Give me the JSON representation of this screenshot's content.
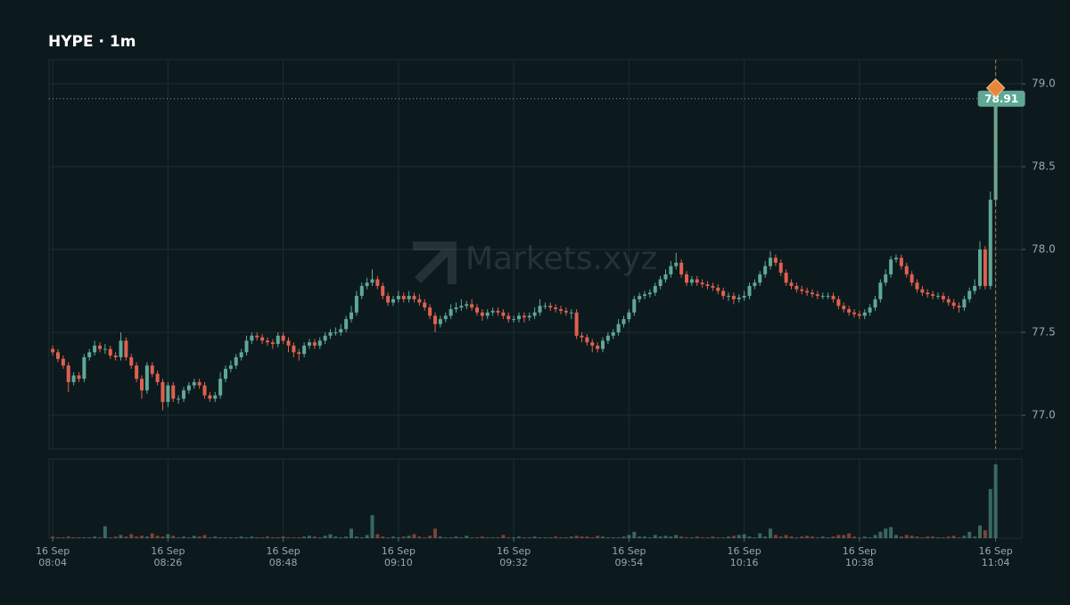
{
  "chart_data": {
    "type": "candlestick",
    "title": "HYPE · 1m",
    "watermark": "Markets.xyz",
    "up_color": "#5fa896",
    "down_color": "#e0604f",
    "last_color": "#e8873a",
    "grid": true,
    "xlim": [
      -0.7,
      185
    ],
    "ylim": [
      76.796,
      79.145
    ],
    "vlim": [
      0,
      100
    ],
    "xticks": [
      {
        "value": 0,
        "label": [
          "16 Sep",
          "08:04"
        ]
      },
      {
        "value": 22,
        "label": [
          "16 Sep",
          "08:26"
        ]
      },
      {
        "value": 44,
        "label": [
          "16 Sep",
          "08:48"
        ]
      },
      {
        "value": 66,
        "label": [
          "16 Sep",
          "09:10"
        ]
      },
      {
        "value": 88,
        "label": [
          "16 Sep",
          "09:32"
        ]
      },
      {
        "value": 110,
        "label": [
          "16 Sep",
          "09:54"
        ]
      },
      {
        "value": 132,
        "label": [
          "16 Sep",
          "10:16"
        ]
      },
      {
        "value": 154,
        "label": [
          "16 Sep",
          "10:38"
        ]
      },
      {
        "value": 180,
        "label": [
          "16 Sep",
          "11:04"
        ]
      }
    ],
    "yticks": [
      {
        "value": 77,
        "label": "77.0"
      },
      {
        "value": 77.5,
        "label": "77.5"
      },
      {
        "value": 78,
        "label": "78.0"
      },
      {
        "value": 78.5,
        "label": "78.5"
      },
      {
        "value": 79,
        "label": "79.0"
      }
    ],
    "last": 78.91,
    "open": [
      77.4,
      77.38,
      77.34,
      77.3,
      77.2,
      77.24,
      77.22,
      77.35,
      77.38,
      77.42,
      77.4,
      77.4,
      77.36,
      77.35,
      77.45,
      77.35,
      77.3,
      77.22,
      77.15,
      77.3,
      77.25,
      77.2,
      77.08,
      77.18,
      77.1,
      77.1,
      77.15,
      77.18,
      77.2,
      77.18,
      77.12,
      77.1,
      77.12,
      77.22,
      77.28,
      77.3,
      77.35,
      77.38,
      77.45,
      77.48,
      77.47,
      77.45,
      77.44,
      77.43,
      77.48,
      77.45,
      77.42,
      77.38,
      77.37,
      77.42,
      77.44,
      77.42,
      77.45,
      77.48,
      77.5,
      77.5,
      77.52,
      77.58,
      77.62,
      77.72,
      77.78,
      77.8,
      77.82,
      77.78,
      77.72,
      77.68,
      77.7,
      77.72,
      77.7,
      77.72,
      77.7,
      77.68,
      77.65,
      77.6,
      77.55,
      77.58,
      77.6,
      77.64,
      77.65,
      77.66,
      77.67,
      77.65,
      77.62,
      77.6,
      77.62,
      77.63,
      77.62,
      77.6,
      77.58,
      77.58,
      77.6,
      77.59,
      77.6,
      77.62,
      77.66,
      77.66,
      77.65,
      77.64,
      77.63,
      77.62,
      77.62,
      77.48,
      77.47,
      77.44,
      77.42,
      77.4,
      77.45,
      77.48,
      77.5,
      77.55,
      77.58,
      77.62,
      77.7,
      77.72,
      77.73,
      77.74,
      77.78,
      77.82,
      77.85,
      77.9,
      77.92,
      77.85,
      77.8,
      77.82,
      77.8,
      77.79,
      77.78,
      77.77,
      77.75,
      77.72,
      77.72,
      77.7,
      77.71,
      77.72,
      77.78,
      77.8,
      77.85,
      77.9,
      77.95,
      77.92,
      77.86,
      77.8,
      77.78,
      77.76,
      77.75,
      77.74,
      77.73,
      77.72,
      77.72,
      77.72,
      77.7,
      77.66,
      77.64,
      77.62,
      77.61,
      77.6,
      77.62,
      77.65,
      77.7,
      77.8,
      77.85,
      77.94,
      77.95,
      77.9,
      77.85,
      77.8,
      77.76,
      77.74,
      77.73,
      77.72,
      77.72,
      77.7,
      77.68,
      77.66,
      77.65,
      77.7,
      77.75,
      77.78,
      78.0,
      77.78,
      78.3
    ],
    "high": [
      77.42,
      77.4,
      77.36,
      77.32,
      77.26,
      77.26,
      77.37,
      77.4,
      77.45,
      77.44,
      77.43,
      77.42,
      77.38,
      77.5,
      77.47,
      77.37,
      77.32,
      77.24,
      77.32,
      77.32,
      77.27,
      77.22,
      77.2,
      77.2,
      77.12,
      77.17,
      77.2,
      77.22,
      77.22,
      77.2,
      77.14,
      77.14,
      77.26,
      77.3,
      77.33,
      77.37,
      77.4,
      77.48,
      77.5,
      77.5,
      77.49,
      77.47,
      77.46,
      77.5,
      77.5,
      77.47,
      77.44,
      77.4,
      77.44,
      77.46,
      77.46,
      77.47,
      77.5,
      77.52,
      77.53,
      77.55,
      77.6,
      77.66,
      77.75,
      77.8,
      77.83,
      77.88,
      77.84,
      77.8,
      77.74,
      77.72,
      77.75,
      77.74,
      77.75,
      77.74,
      77.73,
      77.7,
      77.67,
      77.62,
      77.6,
      77.62,
      77.67,
      77.68,
      77.7,
      77.69,
      77.7,
      77.67,
      77.64,
      77.64,
      77.65,
      77.65,
      77.64,
      77.62,
      77.6,
      77.62,
      77.62,
      77.62,
      77.65,
      77.7,
      77.68,
      77.68,
      77.67,
      77.66,
      77.65,
      77.64,
      77.64,
      77.5,
      77.49,
      77.46,
      77.44,
      77.47,
      77.5,
      77.52,
      77.58,
      77.6,
      77.64,
      77.72,
      77.74,
      77.75,
      77.76,
      77.8,
      77.84,
      77.88,
      77.93,
      77.98,
      77.94,
      77.87,
      77.84,
      77.84,
      77.82,
      77.81,
      77.8,
      77.79,
      77.77,
      77.74,
      77.74,
      77.73,
      77.75,
      77.8,
      77.82,
      77.87,
      77.93,
      77.99,
      77.97,
      77.94,
      77.88,
      77.82,
      77.8,
      77.78,
      77.77,
      77.76,
      77.75,
      77.74,
      77.74,
      77.74,
      77.72,
      77.68,
      77.66,
      77.64,
      77.63,
      77.64,
      77.67,
      77.72,
      77.82,
      77.88,
      77.96,
      77.97,
      77.97,
      77.92,
      77.87,
      77.82,
      77.78,
      77.76,
      77.75,
      77.74,
      77.74,
      77.72,
      77.7,
      77.68,
      77.72,
      77.77,
      77.82,
      78.05,
      78.02,
      78.35,
      78.96
    ],
    "low": [
      77.36,
      77.32,
      77.28,
      77.14,
      77.18,
      77.2,
      77.2,
      77.33,
      77.36,
      77.38,
      77.37,
      77.34,
      77.33,
      77.33,
      77.33,
      77.28,
      77.2,
      77.1,
      77.13,
      77.23,
      77.18,
      77.03,
      77.05,
      77.08,
      77.07,
      77.08,
      77.13,
      77.16,
      77.16,
      77.1,
      77.08,
      77.08,
      77.1,
      77.2,
      77.26,
      77.28,
      77.33,
      77.36,
      77.43,
      77.45,
      77.43,
      77.42,
      77.4,
      77.41,
      77.43,
      77.38,
      77.35,
      77.33,
      77.35,
      77.4,
      77.4,
      77.4,
      77.43,
      77.46,
      77.48,
      77.48,
      77.5,
      77.56,
      77.6,
      77.7,
      77.76,
      77.78,
      77.76,
      77.7,
      77.66,
      77.66,
      77.68,
      77.68,
      77.68,
      77.68,
      77.66,
      77.63,
      77.58,
      77.5,
      77.53,
      77.56,
      77.58,
      77.62,
      77.63,
      77.64,
      77.63,
      77.6,
      77.57,
      77.58,
      77.6,
      77.6,
      77.58,
      77.56,
      77.56,
      77.56,
      77.56,
      77.57,
      77.58,
      77.6,
      77.64,
      77.63,
      77.62,
      77.61,
      77.6,
      77.58,
      77.46,
      77.44,
      77.42,
      77.38,
      77.38,
      77.38,
      77.43,
      77.46,
      77.48,
      77.53,
      77.56,
      77.6,
      77.68,
      77.7,
      77.71,
      77.72,
      77.76,
      77.8,
      77.83,
      77.88,
      77.83,
      77.78,
      77.78,
      77.78,
      77.77,
      77.76,
      77.75,
      77.73,
      77.7,
      77.69,
      77.67,
      77.68,
      77.69,
      77.7,
      77.76,
      77.78,
      77.83,
      77.88,
      77.9,
      77.84,
      77.78,
      77.76,
      77.74,
      77.73,
      77.72,
      77.71,
      77.7,
      77.7,
      77.7,
      77.68,
      77.64,
      77.62,
      77.6,
      77.59,
      77.58,
      77.58,
      77.6,
      77.63,
      77.68,
      77.78,
      77.83,
      77.92,
      77.88,
      77.83,
      77.78,
      77.74,
      77.72,
      77.71,
      77.7,
      77.7,
      77.68,
      77.66,
      77.64,
      77.62,
      77.63,
      77.68,
      77.73,
      77.76,
      77.76,
      77.76,
      78.26
    ],
    "close": [
      77.38,
      77.34,
      77.3,
      77.2,
      77.24,
      77.22,
      77.35,
      77.38,
      77.42,
      77.4,
      77.4,
      77.36,
      77.35,
      77.45,
      77.35,
      77.3,
      77.22,
      77.15,
      77.3,
      77.25,
      77.2,
      77.08,
      77.18,
      77.1,
      77.1,
      77.15,
      77.18,
      77.2,
      77.18,
      77.12,
      77.1,
      77.12,
      77.22,
      77.28,
      77.3,
      77.35,
      77.38,
      77.45,
      77.48,
      77.47,
      77.45,
      77.44,
      77.43,
      77.48,
      77.45,
      77.42,
      77.38,
      77.37,
      77.42,
      77.44,
      77.42,
      77.45,
      77.48,
      77.5,
      77.5,
      77.52,
      77.58,
      77.62,
      77.72,
      77.78,
      77.8,
      77.82,
      77.78,
      77.72,
      77.68,
      77.7,
      77.72,
      77.7,
      77.72,
      77.7,
      77.68,
      77.65,
      77.6,
      77.55,
      77.58,
      77.6,
      77.64,
      77.65,
      77.66,
      77.67,
      77.65,
      77.62,
      77.6,
      77.62,
      77.63,
      77.62,
      77.6,
      77.58,
      77.58,
      77.6,
      77.59,
      77.6,
      77.62,
      77.66,
      77.66,
      77.65,
      77.64,
      77.63,
      77.62,
      77.62,
      77.48,
      77.47,
      77.44,
      77.42,
      77.4,
      77.45,
      77.48,
      77.5,
      77.55,
      77.58,
      77.62,
      77.7,
      77.72,
      77.73,
      77.74,
      77.78,
      77.82,
      77.85,
      77.9,
      77.92,
      77.85,
      77.8,
      77.82,
      77.8,
      77.79,
      77.78,
      77.77,
      77.75,
      77.72,
      77.72,
      77.7,
      77.71,
      77.72,
      77.78,
      77.8,
      77.85,
      77.9,
      77.95,
      77.92,
      77.86,
      77.8,
      77.78,
      77.76,
      77.75,
      77.74,
      77.73,
      77.72,
      77.72,
      77.72,
      77.7,
      77.66,
      77.64,
      77.62,
      77.61,
      77.6,
      77.62,
      77.65,
      77.7,
      77.8,
      77.85,
      77.94,
      77.95,
      77.9,
      77.85,
      77.8,
      77.76,
      77.74,
      77.73,
      77.72,
      77.72,
      77.7,
      77.68,
      77.66,
      77.65,
      77.7,
      77.75,
      77.78,
      78.0,
      77.78,
      78.3,
      78.91
    ],
    "volume": [
      2,
      1,
      1,
      2,
      1,
      1,
      1,
      1,
      2,
      1,
      15,
      1,
      2,
      4,
      2,
      5,
      2,
      3,
      2,
      6,
      3,
      2,
      5,
      3,
      1,
      2,
      1,
      3,
      2,
      4,
      1,
      2,
      1,
      1,
      1,
      1,
      2,
      1,
      2,
      1,
      1,
      2,
      1,
      1,
      2,
      1,
      1,
      1,
      2,
      3,
      2,
      1,
      3,
      5,
      2,
      1,
      2,
      12,
      2,
      1,
      4,
      29,
      5,
      2,
      1,
      2,
      1,
      2,
      3,
      5,
      2,
      1,
      3,
      12,
      2,
      1,
      1,
      2,
      1,
      3,
      1,
      1,
      2,
      1,
      1,
      1,
      4,
      1,
      1,
      2,
      1,
      1,
      2,
      1,
      1,
      1,
      2,
      1,
      1,
      2,
      3,
      2,
      2,
      1,
      3,
      2,
      1,
      1,
      1,
      2,
      4,
      8,
      2,
      2,
      1,
      4,
      2,
      3,
      2,
      4,
      2,
      1,
      1,
      2,
      1,
      1,
      2,
      1,
      1,
      2,
      3,
      4,
      5,
      2,
      1,
      6,
      2,
      12,
      4,
      2,
      4,
      2,
      1,
      2,
      3,
      2,
      1,
      2,
      1,
      2,
      4,
      4,
      6,
      2,
      1,
      2,
      1,
      4,
      8,
      12,
      14,
      4,
      2,
      4,
      3,
      2,
      1,
      2,
      2,
      1,
      1,
      2,
      3,
      1,
      3,
      8,
      2,
      16,
      10,
      62,
      93
    ]
  }
}
